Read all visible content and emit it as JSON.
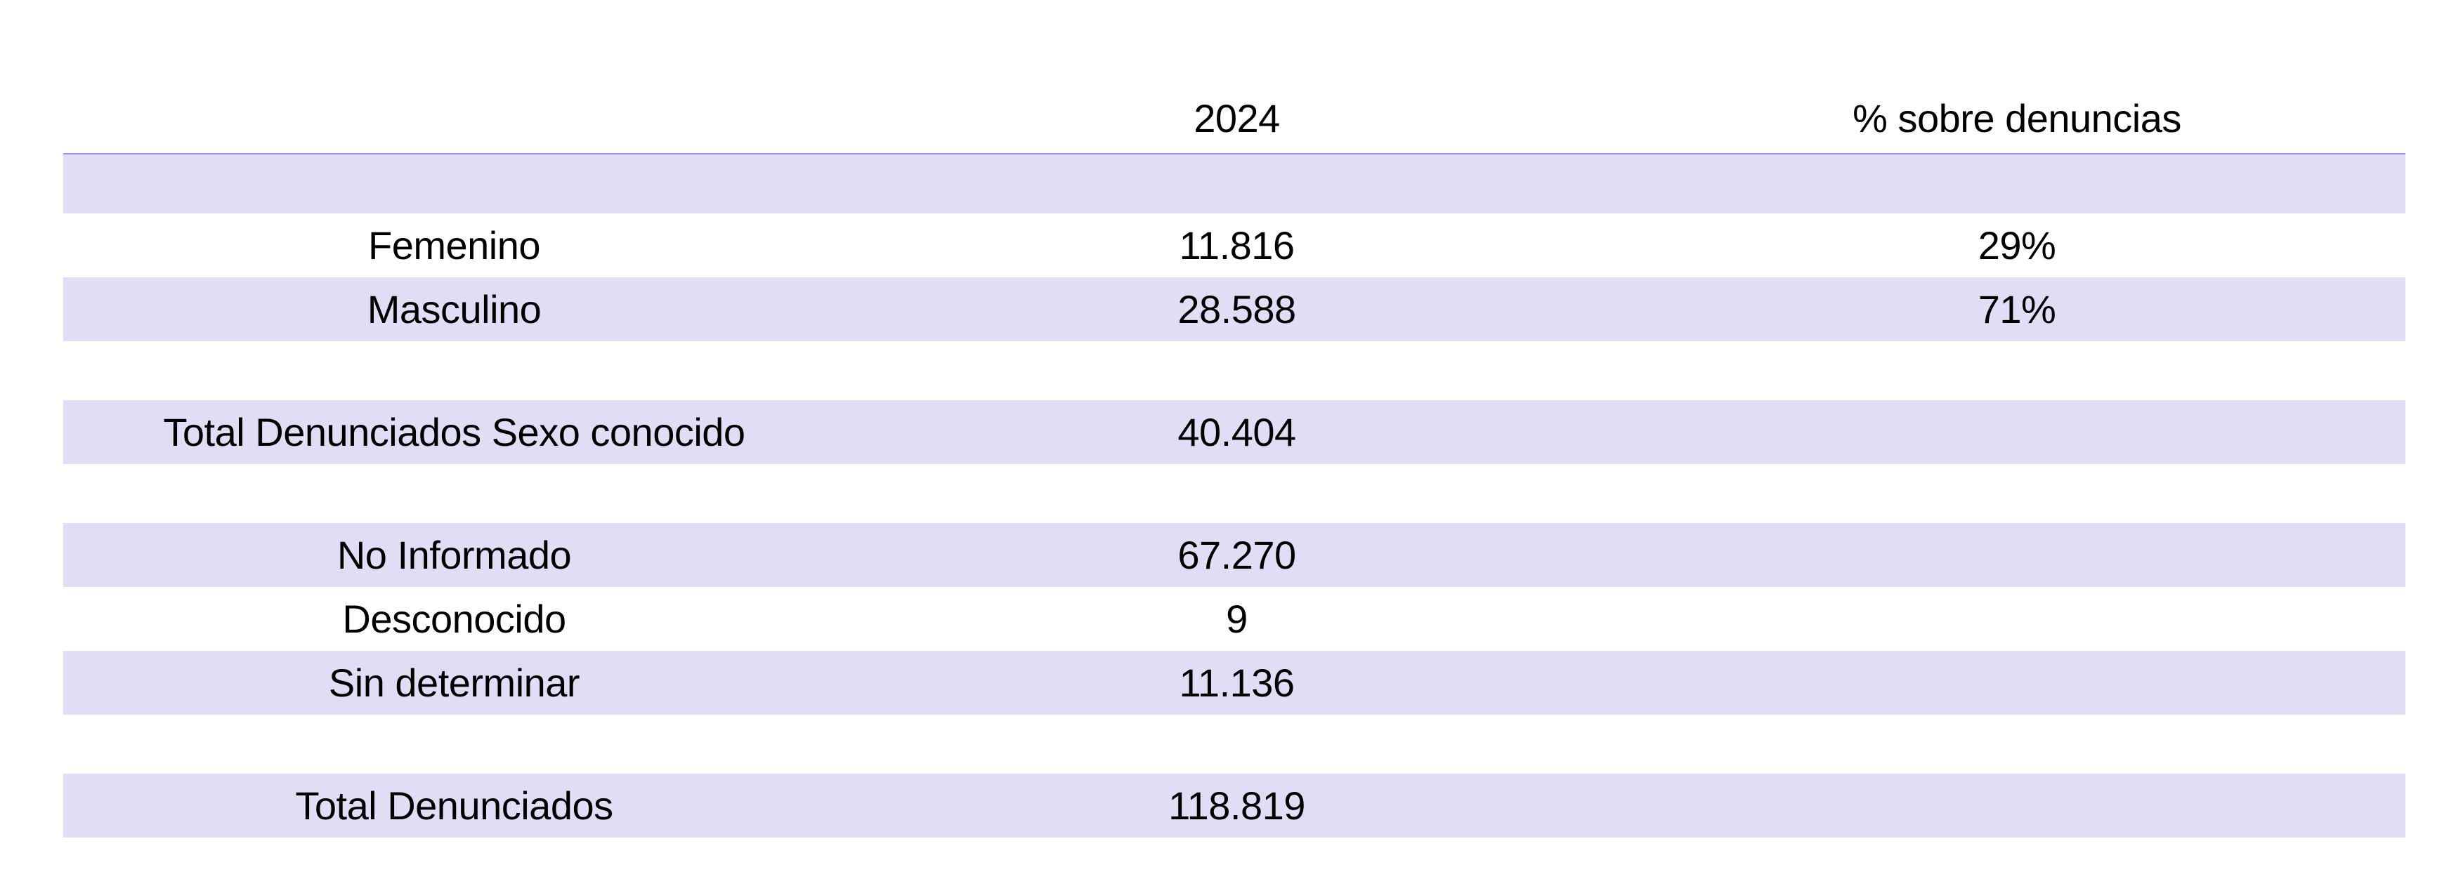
{
  "table": {
    "headers": [
      "",
      "2024",
      "% sobre denuncias"
    ],
    "rows": [
      {
        "label": "",
        "value": "",
        "percent": "",
        "shaded": true
      },
      {
        "label": "Femenino",
        "value": "11.816",
        "percent": "29%",
        "shaded": false
      },
      {
        "label": "Masculino",
        "value": "28.588",
        "percent": "71%",
        "shaded": true
      },
      {
        "label": "",
        "value": "",
        "percent": "",
        "shaded": false
      },
      {
        "label": "Total Denunciados Sexo conocido",
        "value": "40.404",
        "percent": "",
        "shaded": true
      },
      {
        "label": "",
        "value": "",
        "percent": "",
        "shaded": false
      },
      {
        "label": "No Informado",
        "value": "67.270",
        "percent": "",
        "shaded": true
      },
      {
        "label": "Desconocido",
        "value": "9",
        "percent": "",
        "shaded": false
      },
      {
        "label": "Sin determinar",
        "value": "11.136",
        "percent": "",
        "shaded": true
      },
      {
        "label": "",
        "value": "",
        "percent": "",
        "shaded": false
      },
      {
        "label": "Total Denunciados",
        "value": "118.819",
        "percent": "",
        "shaded": true
      }
    ]
  },
  "colors": {
    "row_shade": "#e1ddf5",
    "header_rule": "#9b93e6"
  }
}
